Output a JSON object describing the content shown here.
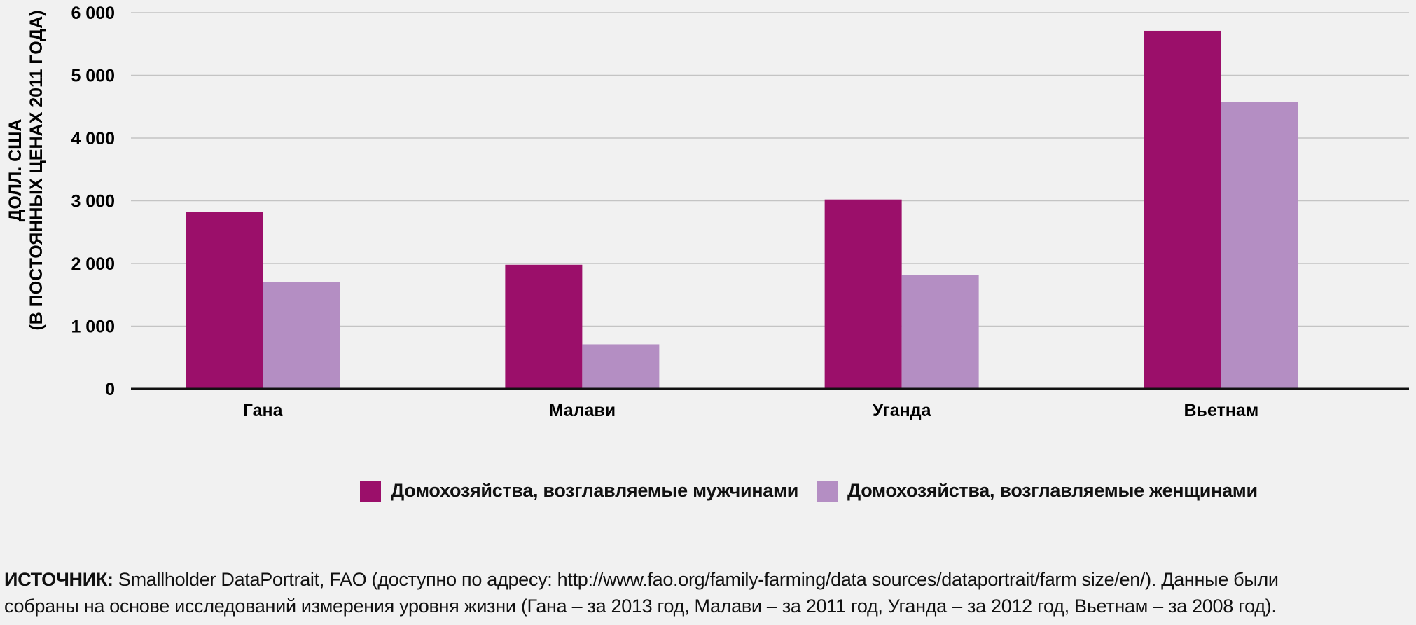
{
  "chart_data": {
    "type": "bar",
    "categories": [
      "Гана",
      "Малави",
      "Уганда",
      "Вьетнам"
    ],
    "series": [
      {
        "name": "Домохозяйства, возглавляемые мужчинами",
        "values": [
          2820,
          1980,
          3020,
          5710
        ],
        "color": "#9b0f6a"
      },
      {
        "name": "Домохозяйства, возглавляемые женщинами",
        "values": [
          1700,
          710,
          1820,
          4570
        ],
        "color": "#b48ec3"
      }
    ],
    "ylabel_line1": "ДОЛЛ. США",
    "ylabel_line2": "(В ПОСТОЯННЫХ ЦЕНАХ  2011 ГОДА)",
    "ylim": [
      0,
      6000
    ],
    "yticks": [
      0,
      1000,
      2000,
      3000,
      4000,
      5000,
      6000
    ],
    "ytick_labels": [
      "0",
      "1 000",
      "2 000",
      "3 000",
      "4 000",
      "5 000",
      "6 000"
    ],
    "grid": true,
    "legend_position": "bottom-center"
  },
  "source": {
    "lead": "ИСТОЧНИК:",
    "line1": "Smallholder DataPortrait, FAO (доступно по адресу: http://www.fao.org/family-farming/data sources/dataportrait/farm size/en/). Данные были",
    "line2": "собраны на основе исследований измерения уровня жизни (Гана – за 2013 год, Малави – за 2011 год, Уганда – за 2012 год, Вьетнам – за 2008 год)."
  }
}
